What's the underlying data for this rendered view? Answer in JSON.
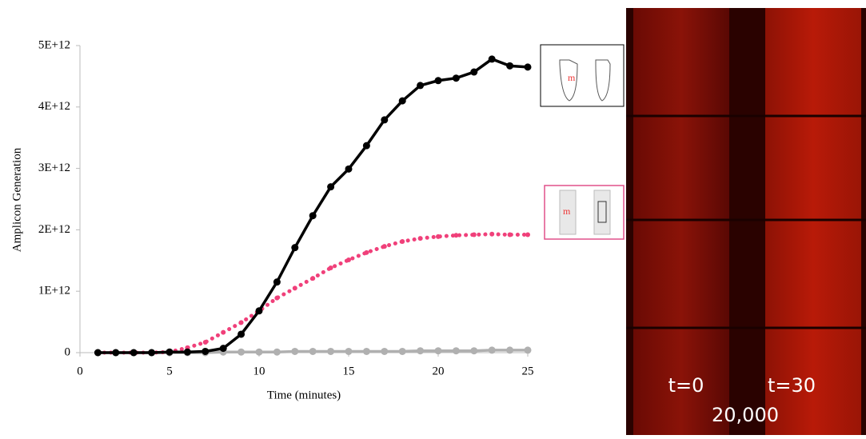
{
  "chart_data": {
    "type": "line",
    "x_label": "Time (minutes)",
    "y_label": "Amplicon Generation",
    "x": [
      1,
      2,
      3,
      4,
      5,
      6,
      7,
      8,
      9,
      10,
      11,
      12,
      13,
      14,
      15,
      16,
      17,
      18,
      19,
      20,
      21,
      22,
      23,
      24,
      25
    ],
    "series": [
      {
        "color": "#000000",
        "style": "solid",
        "values": [
          0,
          0,
          0,
          0,
          10000000000.0,
          10000000000.0,
          20000000000.0,
          70000000000.0,
          300000000000.0,
          680000000000.0,
          1150000000000.0,
          1710000000000.0,
          2230000000000.0,
          2700000000000.0,
          2990000000000.0,
          3370000000000.0,
          3790000000000.0,
          4100000000000.0,
          4350000000000.0,
          4430000000000.0,
          4470000000000.0,
          4570000000000.0,
          4780000000000.0,
          4670000000000.0,
          4650000000000.0
        ]
      },
      {
        "color": "#f0407a",
        "style": "dotted",
        "values": [
          0,
          0,
          0,
          0,
          10000000000.0,
          80000000000.0,
          170000000000.0,
          330000000000.0,
          490000000000.0,
          680000000000.0,
          890000000000.0,
          1050000000000.0,
          1210000000000.0,
          1380000000000.0,
          1510000000000.0,
          1630000000000.0,
          1730000000000.0,
          1810000000000.0,
          1860000000000.0,
          1890000000000.0,
          1910000000000.0,
          1920000000000.0,
          1930000000000.0,
          1920000000000.0,
          1920000000000.0
        ]
      },
      {
        "color": "#b0b0b0",
        "style": "solid",
        "values": [
          0,
          0,
          0,
          0,
          0,
          0,
          0,
          10000000000.0,
          10000000000.0,
          10000000000.0,
          10000000000.0,
          20000000000.0,
          20000000000.0,
          20000000000.0,
          20000000000.0,
          20000000000.0,
          20000000000.0,
          20000000000.0,
          30000000000.0,
          30000000000.0,
          30000000000.0,
          30000000000.0,
          40000000000.0,
          40000000000.0,
          40000000000.0
        ]
      }
    ],
    "xlim": [
      0,
      25
    ],
    "xticks": [
      0,
      5,
      10,
      15,
      20,
      25
    ],
    "ylim": [
      0,
      5000000000000.0
    ],
    "yticks": [
      0,
      {
        "value": 1000000000000.0,
        "label": "1E+12"
      },
      {
        "value": 2000000000000.0,
        "label": "2E+12"
      },
      {
        "value": 3000000000000.0,
        "label": "3E+12"
      },
      {
        "value": 4000000000000.0,
        "label": "4E+12"
      },
      {
        "value": 5000000000000.0,
        "label": "5E+12"
      }
    ]
  },
  "image": {
    "labels": [
      "t=0",
      "t=30",
      "20,000"
    ]
  }
}
